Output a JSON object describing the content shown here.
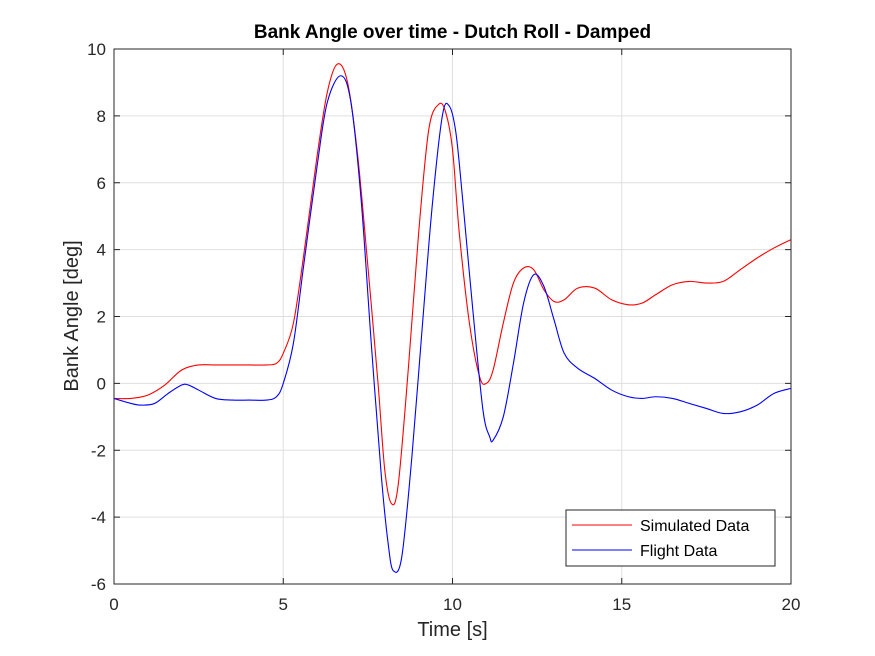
{
  "chart_data": {
    "type": "line",
    "title": "Bank Angle over time - Dutch Roll - Damped",
    "xlabel": "Time [s]",
    "ylabel": "Bank Angle [deg]",
    "xlim": [
      0,
      20
    ],
    "ylim": [
      -6,
      10
    ],
    "xticks": [
      0,
      5,
      10,
      15,
      20
    ],
    "yticks": [
      -6,
      -4,
      -2,
      0,
      2,
      4,
      6,
      8,
      10
    ],
    "grid": true,
    "legend": "bottom-right",
    "series": [
      {
        "name": "Simulated Data",
        "color": "#ff0000",
        "x": [
          0,
          0.5,
          1,
          1.5,
          2,
          2.5,
          3,
          3.5,
          4,
          4.5,
          4.8,
          5,
          5.3,
          5.6,
          6,
          6.3,
          6.6,
          6.9,
          7.2,
          7.5,
          7.8,
          8.0,
          8.2,
          8.4,
          8.7,
          9.0,
          9.3,
          9.6,
          9.8,
          10.0,
          10.2,
          10.5,
          10.8,
          11.0,
          11.2,
          11.5,
          11.8,
          12.1,
          12.4,
          12.7,
          13.0,
          13.3,
          13.7,
          14.2,
          14.7,
          15.2,
          15.6,
          16.0,
          16.5,
          17.0,
          17.5,
          18.0,
          18.5,
          19.0,
          19.5,
          20.0
        ],
        "values": [
          -0.45,
          -0.45,
          -0.35,
          -0.05,
          0.4,
          0.55,
          0.55,
          0.55,
          0.55,
          0.55,
          0.6,
          0.9,
          1.8,
          3.8,
          6.8,
          8.7,
          9.55,
          9.0,
          6.8,
          3.5,
          0.0,
          -2.6,
          -3.6,
          -3.0,
          0.5,
          4.5,
          7.6,
          8.35,
          8.1,
          7.0,
          4.5,
          1.8,
          0.2,
          0.0,
          0.4,
          1.8,
          3.0,
          3.45,
          3.4,
          2.8,
          2.45,
          2.5,
          2.85,
          2.85,
          2.5,
          2.35,
          2.4,
          2.65,
          2.95,
          3.05,
          3.0,
          3.05,
          3.4,
          3.75,
          4.05,
          4.3
        ]
      },
      {
        "name": "Flight Data",
        "color": "#0000ff",
        "x": [
          0,
          0.5,
          0.8,
          1.2,
          1.6,
          2.0,
          2.2,
          2.5,
          3.0,
          3.5,
          4.0,
          4.5,
          4.8,
          5.0,
          5.3,
          5.6,
          6.0,
          6.3,
          6.7,
          7.0,
          7.3,
          7.6,
          7.9,
          8.1,
          8.25,
          8.5,
          8.8,
          9.1,
          9.4,
          9.7,
          9.9,
          10.1,
          10.3,
          10.6,
          10.9,
          11.1,
          11.2,
          11.5,
          11.8,
          12.1,
          12.4,
          12.7,
          13.0,
          13.3,
          13.7,
          14.2,
          14.7,
          15.2,
          15.6,
          16.0,
          16.5,
          17.0,
          17.5,
          18.0,
          18.5,
          19.0,
          19.5,
          20.0
        ],
        "values": [
          -0.45,
          -0.6,
          -0.65,
          -0.6,
          -0.3,
          -0.05,
          -0.05,
          -0.2,
          -0.45,
          -0.5,
          -0.5,
          -0.5,
          -0.4,
          0.0,
          1.2,
          3.5,
          6.5,
          8.4,
          9.2,
          8.4,
          5.5,
          1.2,
          -2.8,
          -4.8,
          -5.6,
          -5.2,
          -2.2,
          1.6,
          5.3,
          8.0,
          8.3,
          7.5,
          5.5,
          2.2,
          -0.8,
          -1.6,
          -1.7,
          -1.0,
          0.6,
          2.4,
          3.25,
          2.9,
          1.9,
          0.9,
          0.45,
          0.15,
          -0.2,
          -0.4,
          -0.45,
          -0.4,
          -0.45,
          -0.6,
          -0.75,
          -0.9,
          -0.85,
          -0.65,
          -0.3,
          -0.15
        ]
      }
    ]
  }
}
